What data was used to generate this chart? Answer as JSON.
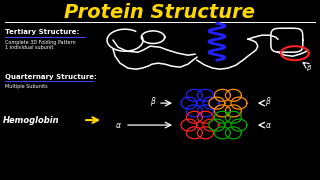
{
  "background_color": "#000000",
  "title": "Protein Structure",
  "title_color": "#FFD700",
  "title_fontsize": 14,
  "text_color": "#FFFFFF",
  "tertiary_label": "Tertiary Structure:",
  "tertiary_sub1": "Complete 3D Folding Pattern",
  "tertiary_sub2": "1 individual subunit",
  "quaternary_label": "Quarternary Structure:",
  "quaternary_sub": "Multiple Subunits",
  "hemoglobin_label": "Hemoglobin",
  "beta_label": "β",
  "alpha_label": "α",
  "white_color": "#FFFFFF",
  "blue_color": "#2222FF",
  "red_color": "#FF2222",
  "orange_color": "#FF8C00",
  "green_color": "#00AA00",
  "yellow_color": "#FFD700"
}
